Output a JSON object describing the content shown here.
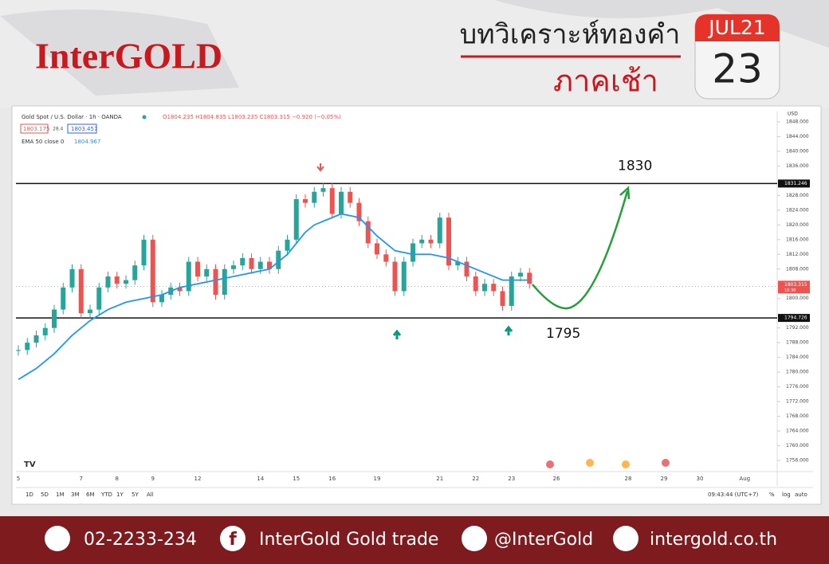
{
  "header": {
    "brand": "InterGOLD",
    "title": "บทวิเคราะห์ทองคำ",
    "subtitle": "ภาคเช้า",
    "calendar_month": "JUL21",
    "calendar_day": "23"
  },
  "chart_header": {
    "symbol": "Gold Spot / U.S. Dollar · 1h · OANDA",
    "ohlc": "O1804.235 H1804.835 L1803.235 C1803.315 −0.920 (−0.05%)",
    "bid": "1803.175",
    "spread": "28.4",
    "ask": "1803.457",
    "indicator": "EMA 50 close 0",
    "indicator_value": "1804.967",
    "currency": "USD"
  },
  "chart_data": {
    "type": "line",
    "categories": [
      "5",
      null,
      null,
      null,
      null,
      null,
      null,
      "7",
      null,
      null,
      null,
      "8",
      null,
      null,
      null,
      "9",
      null,
      null,
      null,
      null,
      "12",
      null,
      null,
      null,
      null,
      null,
      null,
      "14",
      null,
      null,
      null,
      "15",
      null,
      null,
      null,
      "16",
      null,
      null,
      null,
      null,
      "19",
      null,
      null,
      null,
      null,
      null,
      null,
      "21",
      null,
      null,
      null,
      "22",
      null,
      null,
      null,
      "23",
      null,
      null,
      null,
      null,
      "26",
      null,
      null,
      null,
      null,
      null,
      null,
      null,
      "28",
      null,
      null,
      null,
      "29",
      null,
      null,
      null,
      "30",
      null,
      null,
      null,
      null,
      "Aug"
    ],
    "series": [
      {
        "name": "Close",
        "color": "#26a69a",
        "down_color": "#ef5350",
        "values": [
          1786,
          1788,
          1790,
          1792,
          1797,
          1803,
          1808,
          1796,
          1797,
          1803,
          1806,
          1804,
          1805,
          1809,
          1816,
          1799,
          1801,
          1803,
          1802,
          1810,
          1806,
          1808,
          1801,
          1808,
          1809,
          1811,
          1808,
          1810,
          1808,
          1813,
          1816,
          1827,
          1826,
          1829,
          1830,
          1823,
          1829,
          1826,
          1821,
          1815,
          1812,
          1810,
          1802,
          1810,
          1815,
          1816,
          1815,
          1822,
          1809,
          1810,
          1806,
          1802,
          1804,
          1802,
          1798,
          1806,
          1807,
          1804,
          null,
          null,
          null,
          null,
          null,
          null,
          null,
          null,
          null,
          null,
          null,
          null,
          null,
          null,
          null,
          null,
          null,
          null,
          null,
          null,
          null,
          null,
          null,
          null
        ]
      },
      {
        "name": "EMA 50",
        "color": "#2196f3",
        "values": [
          1778,
          1779.5,
          1781,
          1783,
          1785,
          1787.5,
          1790,
          1792,
          1794,
          1795.5,
          1797,
          1798,
          1799,
          1799.5,
          1800,
          1800.5,
          1801,
          1802,
          1803,
          1803.5,
          1804,
          1804.5,
          1805,
          1805.5,
          1806,
          1806.5,
          1807,
          1807.5,
          1808,
          1810,
          1812,
          1815,
          1818,
          1820,
          1821,
          1822,
          1823,
          1822.5,
          1822,
          1819.5,
          1817,
          1815,
          1813,
          1812.5,
          1812,
          1812,
          1812,
          1811.5,
          1811,
          1810,
          1809,
          1808,
          1807,
          1806,
          1805,
          1805,
          1805,
          1805,
          null,
          null,
          null,
          null,
          null,
          null,
          null,
          null,
          null,
          null,
          null,
          null,
          null,
          null,
          null,
          null,
          null,
          null,
          null,
          null,
          null,
          null,
          null,
          null
        ]
      }
    ],
    "ylim": [
      1756,
      1848
    ],
    "yticks": [
      {
        "value": 1756,
        "label": "1756.000"
      },
      {
        "value": 1760,
        "label": "1760.000"
      },
      {
        "value": 1764,
        "label": "1764.000"
      },
      {
        "value": 1768,
        "label": "1768.000"
      },
      {
        "value": 1772,
        "label": "1772.000"
      },
      {
        "value": 1776,
        "label": "1776.000"
      },
      {
        "value": 1780,
        "label": "1780.000"
      },
      {
        "value": 1784,
        "label": "1784.000"
      },
      {
        "value": 1788,
        "label": "1788.000"
      },
      {
        "value": 1792,
        "label": "1792.000"
      },
      {
        "value": 1800,
        "label": "1800.000"
      },
      {
        "value": 1808,
        "label": "1808.000"
      },
      {
        "value": 1812,
        "label": "1812.000"
      },
      {
        "value": 1816,
        "label": "1816.000"
      },
      {
        "value": 1820,
        "label": "1820.000"
      },
      {
        "value": 1824,
        "label": "1824.000"
      },
      {
        "value": 1828,
        "label": "1828.000"
      },
      {
        "value": 1836,
        "label": "1836.000"
      },
      {
        "value": 1840,
        "label": "1840.000"
      },
      {
        "value": 1844,
        "label": "1844.000"
      },
      {
        "value": 1848,
        "label": "1848.000"
      }
    ],
    "levels": [
      {
        "value": 1831.246,
        "label": "1831.246",
        "annotation": "1830"
      },
      {
        "value": 1794.726,
        "label": "1794.726",
        "annotation": "1795"
      }
    ],
    "last_price": {
      "value": 1803.315,
      "label": "1803.315",
      "time": "16:30"
    }
  },
  "toolbar": {
    "ranges": [
      "1D",
      "5D",
      "1M",
      "3M",
      "6M",
      "YTD",
      "1Y",
      "5Y",
      "All"
    ],
    "clock": "09:43:44 (UTC+7)",
    "options": [
      "%",
      "log",
      "auto"
    ]
  },
  "footer": {
    "phone": "02-2233-234",
    "facebook": "InterGold Gold trade",
    "line": "@InterGold",
    "website": "intergold.co.th"
  }
}
